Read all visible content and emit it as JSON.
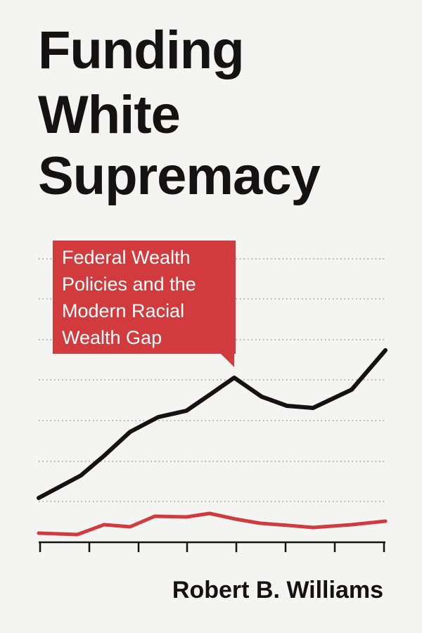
{
  "title": [
    "Funding",
    "White",
    "Supremacy"
  ],
  "subtitle": [
    "Federal Wealth",
    "Policies and the",
    "Modern Racial",
    "Wealth Gap"
  ],
  "author": "Robert B. Williams"
}
